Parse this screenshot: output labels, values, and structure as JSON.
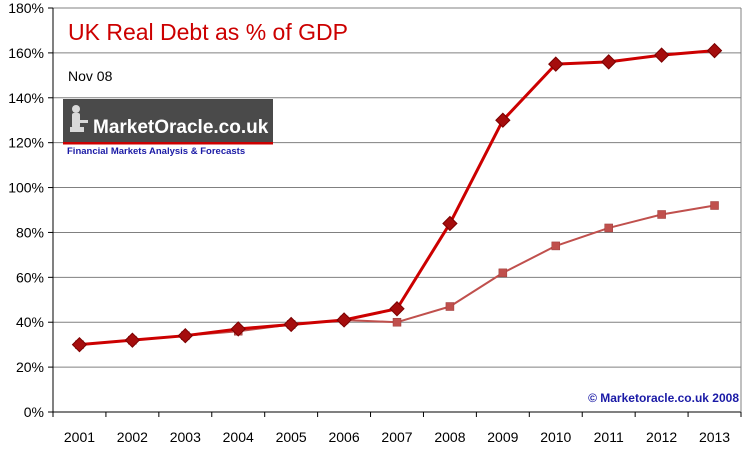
{
  "chart_data": {
    "type": "line",
    "title": "UK  Real Debt  as % of GDP",
    "subtitle": "Nov 08",
    "categories": [
      "2001",
      "2002",
      "2003",
      "2004",
      "2005",
      "2006",
      "2007",
      "2008",
      "2009",
      "2010",
      "2011",
      "2012",
      "2013"
    ],
    "series": [
      {
        "color": "#cc0000",
        "marker": "diamond",
        "values": [
          30,
          32,
          34,
          37,
          39,
          41,
          46,
          84,
          130,
          155,
          156,
          159,
          161
        ]
      },
      {
        "color": "#c0504d",
        "marker": "square",
        "values": [
          30,
          32,
          34,
          36,
          39,
          41,
          40,
          47,
          62,
          74,
          82,
          88,
          92
        ]
      }
    ],
    "ylim": [
      0,
      180
    ],
    "ytick_step": 20,
    "ytick_suffix": "%",
    "grid": true,
    "annotation": "© Marketoracle.co.uk 2008"
  },
  "logo": {
    "name": "MarketOracle.co.uk",
    "tagline": "Financial Markets Analysis & Forecasts"
  }
}
